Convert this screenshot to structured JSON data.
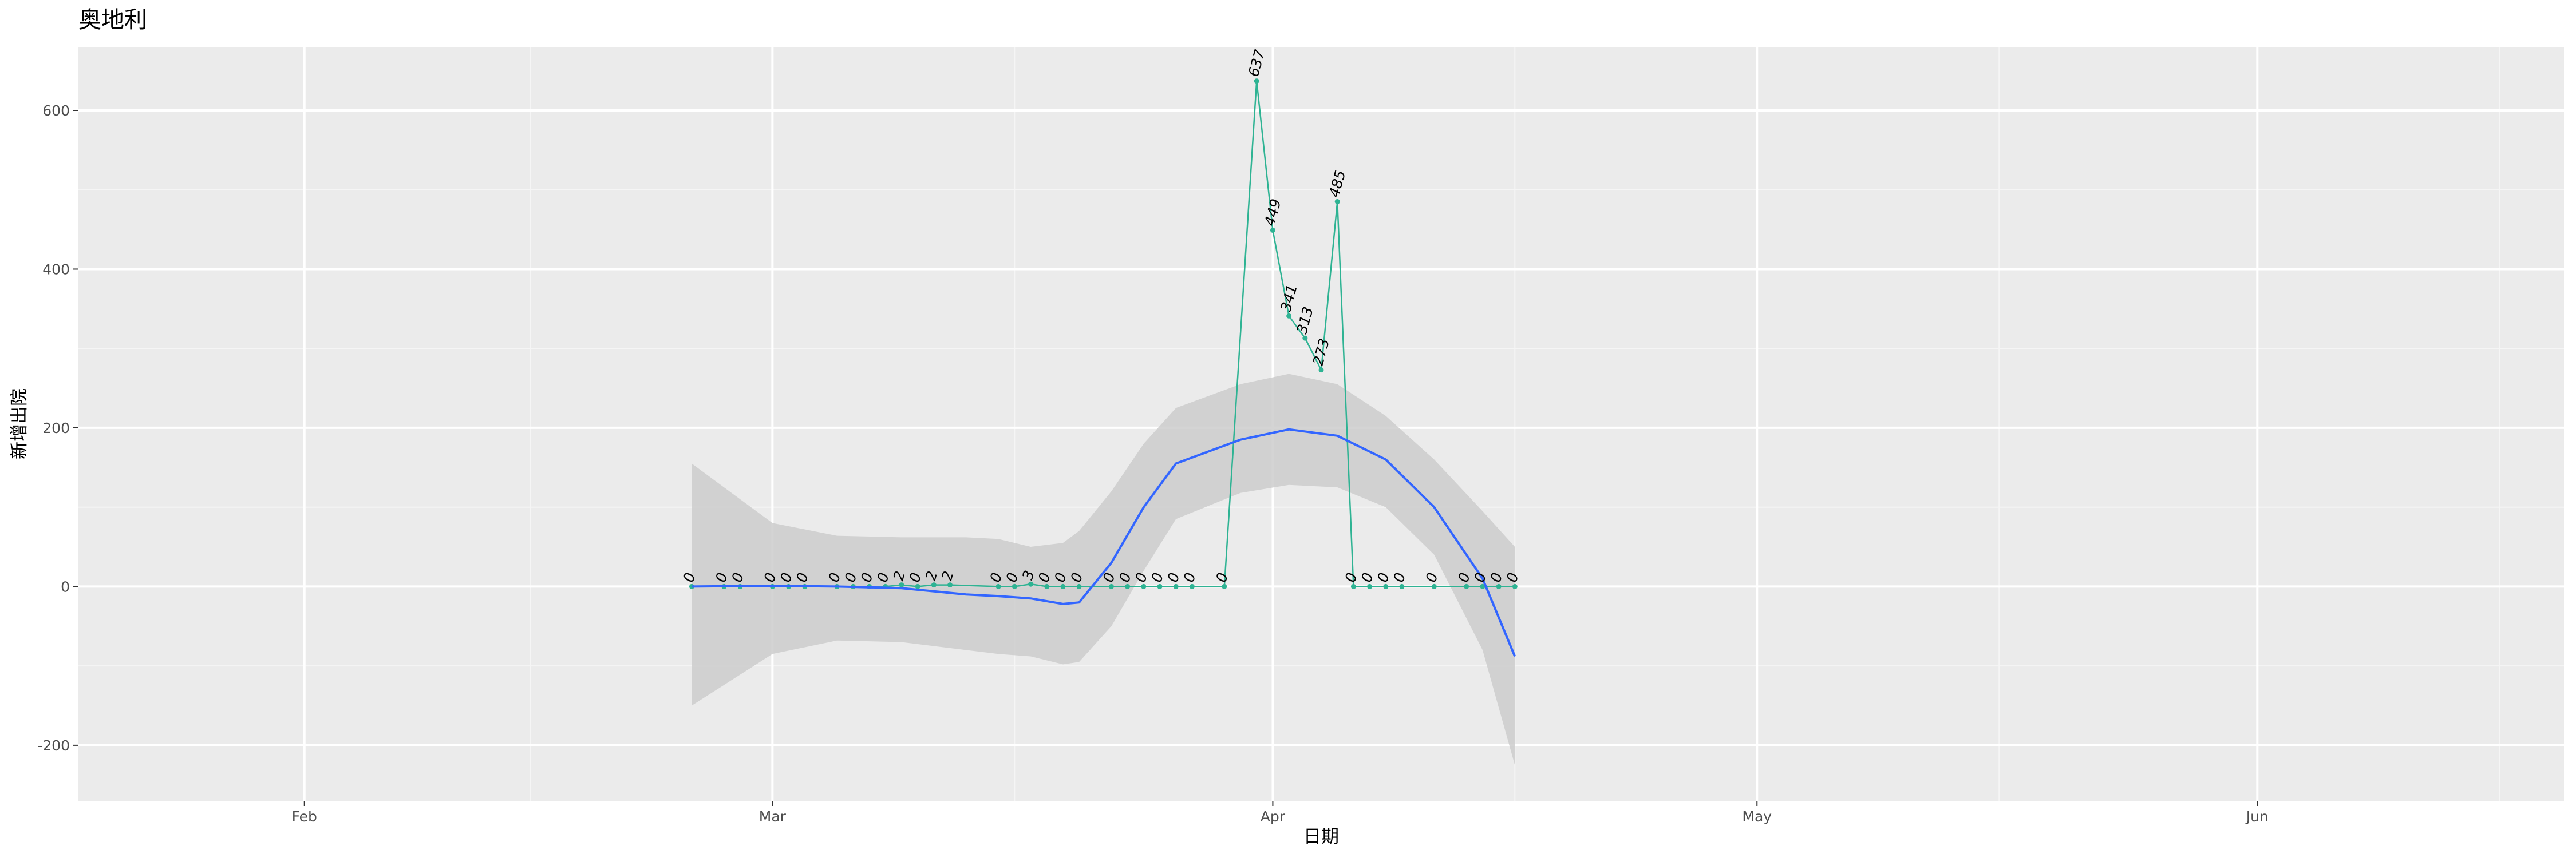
{
  "chart_data": {
    "type": "line",
    "title": "奥地利",
    "xlabel": "日期",
    "ylabel": "新增出院",
    "x_axis": {
      "type": "date",
      "range": [
        "2020-01-18",
        "2020-06-20"
      ],
      "ticks": [
        {
          "date": "2020-02-01",
          "label": "Feb"
        },
        {
          "date": "2020-03-01",
          "label": "Mar"
        },
        {
          "date": "2020-04-01",
          "label": "Apr"
        },
        {
          "date": "2020-05-01",
          "label": "May"
        },
        {
          "date": "2020-06-01",
          "label": "Jun"
        }
      ],
      "minor_ticks": [
        "2020-01-16",
        "2020-02-15",
        "2020-03-16",
        "2020-04-16",
        "2020-05-16",
        "2020-06-16"
      ]
    },
    "y_axis": {
      "range": [
        -270,
        680
      ],
      "ticks": [
        -200,
        0,
        200,
        400,
        600
      ],
      "minor_ticks": [
        -100,
        100,
        300,
        500
      ]
    },
    "grid": true,
    "series": [
      {
        "name": "",
        "color": "#2eb393",
        "points": [
          {
            "x": "2020-02-25",
            "y": 0
          },
          {
            "x": "2020-02-27",
            "y": 0
          },
          {
            "x": "2020-02-28",
            "y": 0
          },
          {
            "x": "2020-03-01",
            "y": 0
          },
          {
            "x": "2020-03-02",
            "y": 0
          },
          {
            "x": "2020-03-03",
            "y": 0
          },
          {
            "x": "2020-03-05",
            "y": 0
          },
          {
            "x": "2020-03-06",
            "y": 0
          },
          {
            "x": "2020-03-07",
            "y": 0
          },
          {
            "x": "2020-03-08",
            "y": 0
          },
          {
            "x": "2020-03-09",
            "y": 2
          },
          {
            "x": "2020-03-10",
            "y": 0
          },
          {
            "x": "2020-03-11",
            "y": 2
          },
          {
            "x": "2020-03-12",
            "y": 2
          },
          {
            "x": "2020-03-15",
            "y": 0
          },
          {
            "x": "2020-03-16",
            "y": 0
          },
          {
            "x": "2020-03-17",
            "y": 3
          },
          {
            "x": "2020-03-18",
            "y": 0
          },
          {
            "x": "2020-03-19",
            "y": 0
          },
          {
            "x": "2020-03-20",
            "y": 0
          },
          {
            "x": "2020-03-22",
            "y": 0
          },
          {
            "x": "2020-03-23",
            "y": 0
          },
          {
            "x": "2020-03-24",
            "y": 0
          },
          {
            "x": "2020-03-25",
            "y": 0
          },
          {
            "x": "2020-03-26",
            "y": 0
          },
          {
            "x": "2020-03-27",
            "y": 0
          },
          {
            "x": "2020-03-29",
            "y": 0
          },
          {
            "x": "2020-03-31",
            "y": 637
          },
          {
            "x": "2020-04-01",
            "y": 449
          },
          {
            "x": "2020-04-02",
            "y": 341
          },
          {
            "x": "2020-04-03",
            "y": 313
          },
          {
            "x": "2020-04-04",
            "y": 273
          },
          {
            "x": "2020-04-05",
            "y": 485
          },
          {
            "x": "2020-04-06",
            "y": 0
          },
          {
            "x": "2020-04-07",
            "y": 0
          },
          {
            "x": "2020-04-08",
            "y": 0
          },
          {
            "x": "2020-04-09",
            "y": 0
          },
          {
            "x": "2020-04-11",
            "y": 0
          },
          {
            "x": "2020-04-13",
            "y": 0
          },
          {
            "x": "2020-04-14",
            "y": 0
          },
          {
            "x": "2020-04-15",
            "y": 0
          },
          {
            "x": "2020-04-16",
            "y": 0
          }
        ]
      }
    ],
    "smooth": {
      "color": "#3366ff",
      "band_color": "#cccccc",
      "fit": [
        {
          "x": "2020-02-25",
          "y": 0
        },
        {
          "x": "2020-03-01",
          "y": 1
        },
        {
          "x": "2020-03-05",
          "y": 0
        },
        {
          "x": "2020-03-09",
          "y": -2
        },
        {
          "x": "2020-03-13",
          "y": -10
        },
        {
          "x": "2020-03-15",
          "y": -12
        },
        {
          "x": "2020-03-17",
          "y": -15
        },
        {
          "x": "2020-03-19",
          "y": -22
        },
        {
          "x": "2020-03-20",
          "y": -20
        },
        {
          "x": "2020-03-22",
          "y": 30
        },
        {
          "x": "2020-03-24",
          "y": 100
        },
        {
          "x": "2020-03-26",
          "y": 155
        },
        {
          "x": "2020-03-30",
          "y": 185
        },
        {
          "x": "2020-04-02",
          "y": 198
        },
        {
          "x": "2020-04-05",
          "y": 190
        },
        {
          "x": "2020-04-08",
          "y": 160
        },
        {
          "x": "2020-04-11",
          "y": 100
        },
        {
          "x": "2020-04-14",
          "y": 10
        },
        {
          "x": "2020-04-16",
          "y": -88
        }
      ],
      "upper": [
        {
          "x": "2020-02-25",
          "y": 155
        },
        {
          "x": "2020-03-01",
          "y": 80
        },
        {
          "x": "2020-03-05",
          "y": 64
        },
        {
          "x": "2020-03-09",
          "y": 62
        },
        {
          "x": "2020-03-13",
          "y": 62
        },
        {
          "x": "2020-03-15",
          "y": 60
        },
        {
          "x": "2020-03-17",
          "y": 50
        },
        {
          "x": "2020-03-19",
          "y": 55
        },
        {
          "x": "2020-03-20",
          "y": 70
        },
        {
          "x": "2020-03-22",
          "y": 120
        },
        {
          "x": "2020-03-24",
          "y": 180
        },
        {
          "x": "2020-03-26",
          "y": 225
        },
        {
          "x": "2020-03-30",
          "y": 255
        },
        {
          "x": "2020-04-02",
          "y": 268
        },
        {
          "x": "2020-04-05",
          "y": 255
        },
        {
          "x": "2020-04-08",
          "y": 215
        },
        {
          "x": "2020-04-11",
          "y": 160
        },
        {
          "x": "2020-04-14",
          "y": 95
        },
        {
          "x": "2020-04-16",
          "y": 50
        }
      ],
      "lower": [
        {
          "x": "2020-02-25",
          "y": -150
        },
        {
          "x": "2020-03-01",
          "y": -85
        },
        {
          "x": "2020-03-05",
          "y": -68
        },
        {
          "x": "2020-03-09",
          "y": -70
        },
        {
          "x": "2020-03-13",
          "y": -80
        },
        {
          "x": "2020-03-15",
          "y": -85
        },
        {
          "x": "2020-03-17",
          "y": -88
        },
        {
          "x": "2020-03-19",
          "y": -98
        },
        {
          "x": "2020-03-20",
          "y": -95
        },
        {
          "x": "2020-03-22",
          "y": -50
        },
        {
          "x": "2020-03-24",
          "y": 20
        },
        {
          "x": "2020-03-26",
          "y": 85
        },
        {
          "x": "2020-03-30",
          "y": 118
        },
        {
          "x": "2020-04-02",
          "y": 128
        },
        {
          "x": "2020-04-05",
          "y": 125
        },
        {
          "x": "2020-04-08",
          "y": 100
        },
        {
          "x": "2020-04-11",
          "y": 40
        },
        {
          "x": "2020-04-14",
          "y": -80
        },
        {
          "x": "2020-04-16",
          "y": -225
        }
      ]
    }
  }
}
